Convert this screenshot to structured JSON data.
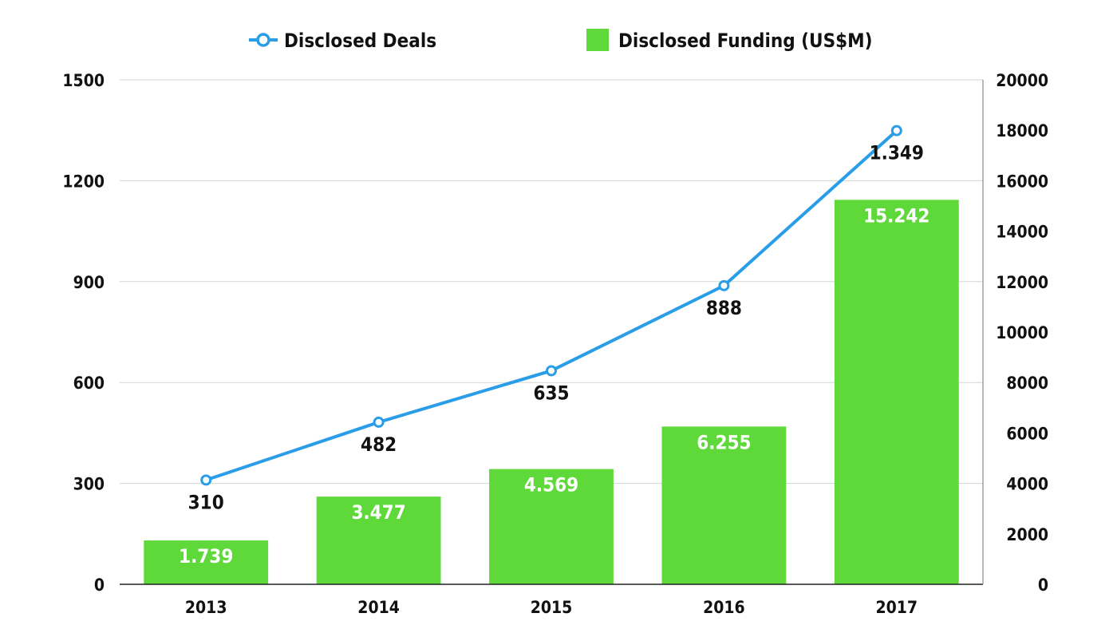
{
  "chart_data": {
    "type": "bar",
    "categories": [
      "2013",
      "2014",
      "2015",
      "2016",
      "2017"
    ],
    "series": [
      {
        "name": "Disclosed Funding (US$M)",
        "type": "bar",
        "axis": "right",
        "values": [
          1739,
          3477,
          4569,
          6255,
          15242
        ],
        "labels": [
          "1.739",
          "3.477",
          "4.569",
          "6.255",
          "15.242"
        ],
        "color": "#5fd93a"
      },
      {
        "name": "Disclosed Deals",
        "type": "line",
        "axis": "left",
        "values": [
          310,
          482,
          635,
          888,
          1349
        ],
        "labels": [
          "310",
          "482",
          "635",
          "888",
          "1.349"
        ],
        "color": "#2a9de8"
      }
    ],
    "y_left": {
      "min": 0,
      "max": 1500,
      "ticks": [
        "0",
        "300",
        "600",
        "900",
        "1200",
        "1500"
      ]
    },
    "y_right": {
      "min": 0,
      "max": 20000,
      "ticks": [
        "0",
        "2000",
        "4000",
        "6000",
        "8000",
        "10000",
        "12000",
        "14000",
        "16000",
        "18000",
        "20000"
      ]
    },
    "grid": true,
    "legend_position": "top-center",
    "title": "",
    "xlabel": "",
    "ylabel": ""
  }
}
